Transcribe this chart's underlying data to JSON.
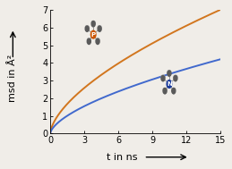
{
  "xlabel": "t in ns",
  "ylabel": "msd in Å²",
  "xlim": [
    0,
    15
  ],
  "ylim": [
    0,
    7
  ],
  "xticks": [
    0,
    3,
    6,
    9,
    12,
    15
  ],
  "yticks": [
    0,
    1,
    2,
    3,
    4,
    5,
    6,
    7
  ],
  "orange_color": "#D2761E",
  "blue_color": "#4169CD",
  "background_color": "#f0ede8",
  "orange_c0": 0.0,
  "orange_scale": 7.0,
  "orange_exp": 0.62,
  "blue_c0": 0.0,
  "blue_scale": 4.2,
  "blue_exp": 0.62,
  "tick_fontsize": 7,
  "label_fontsize": 8,
  "linewidth": 1.4
}
